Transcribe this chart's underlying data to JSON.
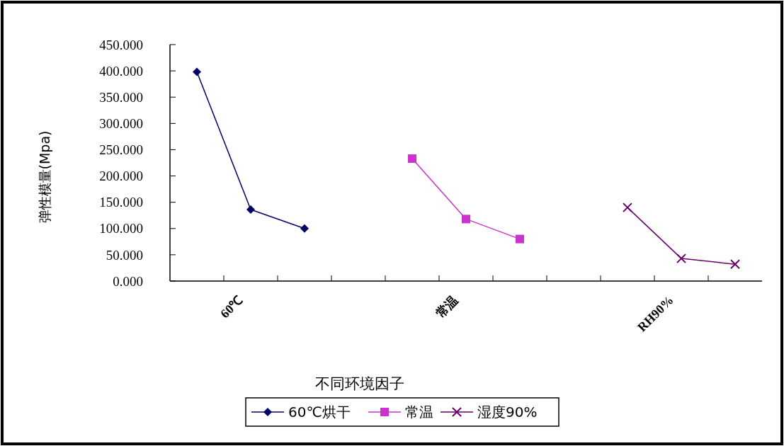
{
  "chart_data": {
    "type": "line",
    "xlabel": "不同环境因子",
    "ylabel": "弹性模量(Mpa)",
    "categories": [
      null,
      "60℃",
      null,
      null,
      null,
      "常温",
      null,
      null,
      null,
      "RH90%",
      null
    ],
    "series": [
      {
        "name": "60℃烘干",
        "color": "#000066",
        "marker": "diamond",
        "values": [
          398,
          136,
          100,
          null,
          null,
          null,
          null,
          null,
          null,
          null,
          null
        ]
      },
      {
        "name": "常温",
        "color": "#cc33cc",
        "marker": "square",
        "values": [
          null,
          null,
          null,
          null,
          233,
          118,
          80,
          null,
          null,
          null,
          null
        ]
      },
      {
        "name": "湿度90%",
        "color": "#660066",
        "marker": "cross",
        "values": [
          null,
          null,
          null,
          null,
          null,
          null,
          null,
          null,
          140,
          43,
          32
        ]
      }
    ],
    "ylim": [
      0,
      450
    ],
    "yticks": [
      {
        "value": 0,
        "label": "0.000"
      },
      {
        "value": 50,
        "label": "50.000"
      },
      {
        "value": 100,
        "label": "100.000"
      },
      {
        "value": 150,
        "label": "150.000"
      },
      {
        "value": 200,
        "label": "200.000"
      },
      {
        "value": 250,
        "label": "250.000"
      },
      {
        "value": 300,
        "label": "300.000"
      },
      {
        "value": 350,
        "label": "350.000"
      },
      {
        "value": 400,
        "label": "400.000"
      },
      {
        "value": 450,
        "label": "450.000"
      }
    ],
    "grid": false,
    "legend": "bottom",
    "line_style": "solid"
  }
}
